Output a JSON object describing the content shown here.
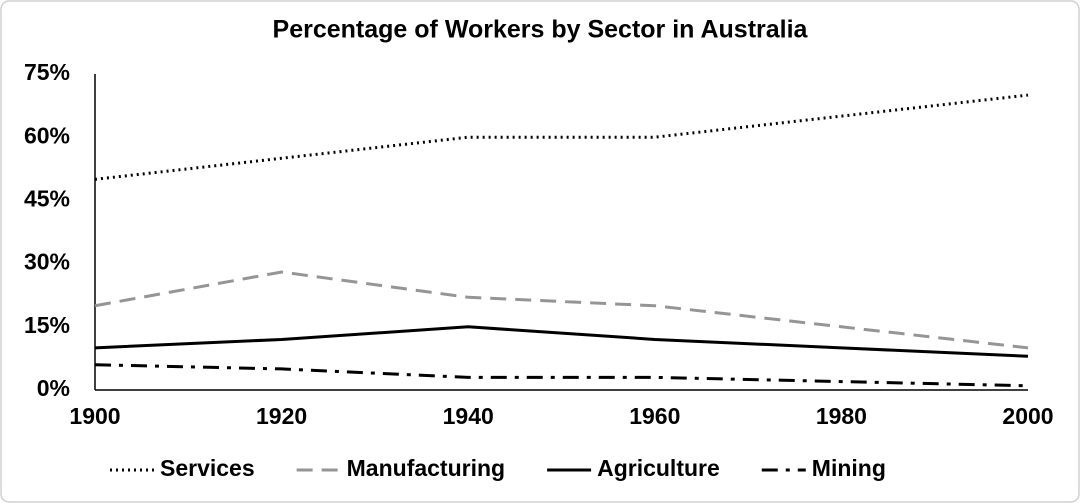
{
  "chart_data": {
    "type": "line",
    "title": "Percentage of Workers by Sector in Australia",
    "x": [
      1900,
      1920,
      1940,
      1960,
      1980,
      2000
    ],
    "xlim": [
      1900,
      2000
    ],
    "xticks": [
      1900,
      1920,
      1940,
      1960,
      1980,
      2000
    ],
    "ylim": [
      0,
      75
    ],
    "yticks": [
      {
        "value": 0,
        "label": "0%"
      },
      {
        "value": 15,
        "label": "15%"
      },
      {
        "value": 30,
        "label": "30%"
      },
      {
        "value": 45,
        "label": "45%"
      },
      {
        "value": 60,
        "label": "60%"
      },
      {
        "value": 75,
        "label": "75%"
      }
    ],
    "grid": false,
    "legend": "bottom",
    "series": [
      {
        "name": "Services",
        "color": "#000000",
        "dash": "dotted",
        "values": [
          50,
          55,
          60,
          60,
          65,
          70
        ]
      },
      {
        "name": "Manufacturing",
        "color": "#959595",
        "dash": "dashed",
        "values": [
          20,
          28,
          22,
          20,
          15,
          10
        ]
      },
      {
        "name": "Agriculture",
        "color": "#000000",
        "dash": "solid",
        "values": [
          10,
          12,
          15,
          12,
          10,
          8
        ]
      },
      {
        "name": "Mining",
        "color": "#000000",
        "dash": "dashdot",
        "values": [
          6,
          5,
          3,
          3,
          2,
          1
        ]
      }
    ]
  }
}
